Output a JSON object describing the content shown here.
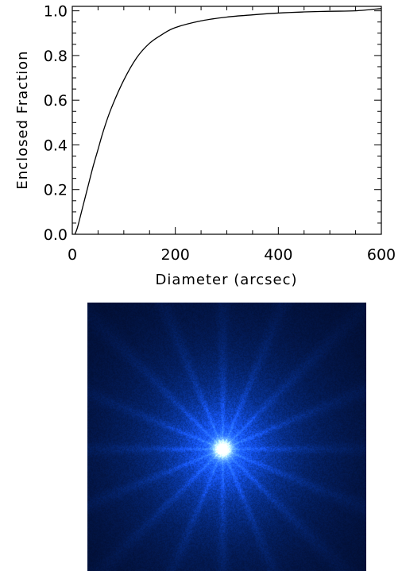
{
  "chart_data": {
    "type": "line",
    "title": "",
    "xlabel": "Diameter (arcsec)",
    "ylabel": "Enclosed Fraction",
    "xlim": [
      0,
      600
    ],
    "ylim": [
      0.0,
      1.02
    ],
    "x_ticks": [
      0,
      200,
      400,
      600
    ],
    "x_tick_labels": [
      "0",
      "200",
      "400",
      "600"
    ],
    "y_ticks": [
      0.0,
      0.2,
      0.4,
      0.6,
      0.8,
      1.0
    ],
    "y_tick_labels": [
      "0.0",
      "0.2",
      "0.4",
      "0.6",
      "0.8",
      "1.0"
    ],
    "grid": false,
    "legend": "none",
    "series": [
      {
        "x": [
          5,
          10,
          20,
          30,
          40,
          50,
          60,
          75,
          100,
          125,
          150,
          175,
          200,
          250,
          300,
          350,
          400,
          450,
          500,
          550,
          600
        ],
        "y": [
          0.0,
          0.03,
          0.12,
          0.21,
          0.3,
          0.38,
          0.46,
          0.56,
          0.69,
          0.79,
          0.855,
          0.895,
          0.925,
          0.955,
          0.972,
          0.982,
          0.99,
          0.995,
          0.998,
          1.0,
          1.01
        ],
        "color": "#000000"
      }
    ]
  },
  "image_panel": {
    "description_colors": {
      "background": "#02061c",
      "mid": "#0a3fd0",
      "core": "#ffffff"
    }
  }
}
